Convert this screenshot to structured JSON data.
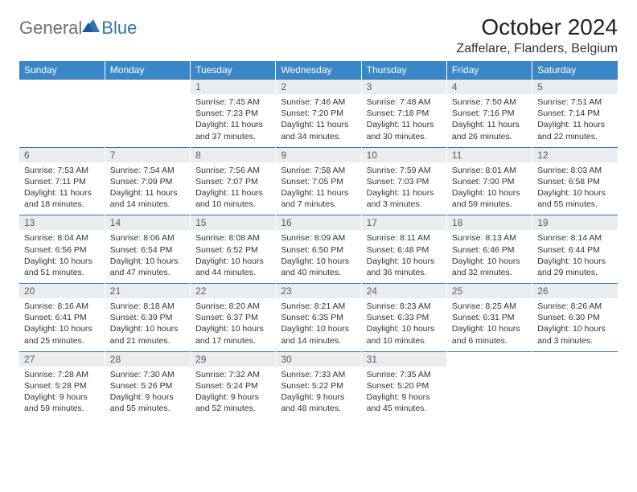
{
  "logo": {
    "text1": "General",
    "text2": "Blue",
    "color_gray": "#6f6f6f",
    "color_blue": "#2f74b5"
  },
  "title": "October 2024",
  "location": "Zaffelare, Flanders, Belgium",
  "header_bg": "#3a87c8",
  "daynum_bg": "#e9edf0",
  "border_color": "#2f74b5",
  "days": [
    "Sunday",
    "Monday",
    "Tuesday",
    "Wednesday",
    "Thursday",
    "Friday",
    "Saturday"
  ],
  "weeks": [
    {
      "nums": [
        "",
        "",
        "1",
        "2",
        "3",
        "4",
        "5"
      ],
      "cells": [
        null,
        null,
        {
          "sunrise": "Sunrise: 7:45 AM",
          "sunset": "Sunset: 7:23 PM",
          "daylight": "Daylight: 11 hours and 37 minutes."
        },
        {
          "sunrise": "Sunrise: 7:46 AM",
          "sunset": "Sunset: 7:20 PM",
          "daylight": "Daylight: 11 hours and 34 minutes."
        },
        {
          "sunrise": "Sunrise: 7:48 AM",
          "sunset": "Sunset: 7:18 PM",
          "daylight": "Daylight: 11 hours and 30 minutes."
        },
        {
          "sunrise": "Sunrise: 7:50 AM",
          "sunset": "Sunset: 7:16 PM",
          "daylight": "Daylight: 11 hours and 26 minutes."
        },
        {
          "sunrise": "Sunrise: 7:51 AM",
          "sunset": "Sunset: 7:14 PM",
          "daylight": "Daylight: 11 hours and 22 minutes."
        }
      ]
    },
    {
      "nums": [
        "6",
        "7",
        "8",
        "9",
        "10",
        "11",
        "12"
      ],
      "cells": [
        {
          "sunrise": "Sunrise: 7:53 AM",
          "sunset": "Sunset: 7:11 PM",
          "daylight": "Daylight: 11 hours and 18 minutes."
        },
        {
          "sunrise": "Sunrise: 7:54 AM",
          "sunset": "Sunset: 7:09 PM",
          "daylight": "Daylight: 11 hours and 14 minutes."
        },
        {
          "sunrise": "Sunrise: 7:56 AM",
          "sunset": "Sunset: 7:07 PM",
          "daylight": "Daylight: 11 hours and 10 minutes."
        },
        {
          "sunrise": "Sunrise: 7:58 AM",
          "sunset": "Sunset: 7:05 PM",
          "daylight": "Daylight: 11 hours and 7 minutes."
        },
        {
          "sunrise": "Sunrise: 7:59 AM",
          "sunset": "Sunset: 7:03 PM",
          "daylight": "Daylight: 11 hours and 3 minutes."
        },
        {
          "sunrise": "Sunrise: 8:01 AM",
          "sunset": "Sunset: 7:00 PM",
          "daylight": "Daylight: 10 hours and 59 minutes."
        },
        {
          "sunrise": "Sunrise: 8:03 AM",
          "sunset": "Sunset: 6:58 PM",
          "daylight": "Daylight: 10 hours and 55 minutes."
        }
      ]
    },
    {
      "nums": [
        "13",
        "14",
        "15",
        "16",
        "17",
        "18",
        "19"
      ],
      "cells": [
        {
          "sunrise": "Sunrise: 8:04 AM",
          "sunset": "Sunset: 6:56 PM",
          "daylight": "Daylight: 10 hours and 51 minutes."
        },
        {
          "sunrise": "Sunrise: 8:06 AM",
          "sunset": "Sunset: 6:54 PM",
          "daylight": "Daylight: 10 hours and 47 minutes."
        },
        {
          "sunrise": "Sunrise: 8:08 AM",
          "sunset": "Sunset: 6:52 PM",
          "daylight": "Daylight: 10 hours and 44 minutes."
        },
        {
          "sunrise": "Sunrise: 8:09 AM",
          "sunset": "Sunset: 6:50 PM",
          "daylight": "Daylight: 10 hours and 40 minutes."
        },
        {
          "sunrise": "Sunrise: 8:11 AM",
          "sunset": "Sunset: 6:48 PM",
          "daylight": "Daylight: 10 hours and 36 minutes."
        },
        {
          "sunrise": "Sunrise: 8:13 AM",
          "sunset": "Sunset: 6:46 PM",
          "daylight": "Daylight: 10 hours and 32 minutes."
        },
        {
          "sunrise": "Sunrise: 8:14 AM",
          "sunset": "Sunset: 6:44 PM",
          "daylight": "Daylight: 10 hours and 29 minutes."
        }
      ]
    },
    {
      "nums": [
        "20",
        "21",
        "22",
        "23",
        "24",
        "25",
        "26"
      ],
      "cells": [
        {
          "sunrise": "Sunrise: 8:16 AM",
          "sunset": "Sunset: 6:41 PM",
          "daylight": "Daylight: 10 hours and 25 minutes."
        },
        {
          "sunrise": "Sunrise: 8:18 AM",
          "sunset": "Sunset: 6:39 PM",
          "daylight": "Daylight: 10 hours and 21 minutes."
        },
        {
          "sunrise": "Sunrise: 8:20 AM",
          "sunset": "Sunset: 6:37 PM",
          "daylight": "Daylight: 10 hours and 17 minutes."
        },
        {
          "sunrise": "Sunrise: 8:21 AM",
          "sunset": "Sunset: 6:35 PM",
          "daylight": "Daylight: 10 hours and 14 minutes."
        },
        {
          "sunrise": "Sunrise: 8:23 AM",
          "sunset": "Sunset: 6:33 PM",
          "daylight": "Daylight: 10 hours and 10 minutes."
        },
        {
          "sunrise": "Sunrise: 8:25 AM",
          "sunset": "Sunset: 6:31 PM",
          "daylight": "Daylight: 10 hours and 6 minutes."
        },
        {
          "sunrise": "Sunrise: 8:26 AM",
          "sunset": "Sunset: 6:30 PM",
          "daylight": "Daylight: 10 hours and 3 minutes."
        }
      ]
    },
    {
      "nums": [
        "27",
        "28",
        "29",
        "30",
        "31",
        "",
        ""
      ],
      "cells": [
        {
          "sunrise": "Sunrise: 7:28 AM",
          "sunset": "Sunset: 5:28 PM",
          "daylight": "Daylight: 9 hours and 59 minutes."
        },
        {
          "sunrise": "Sunrise: 7:30 AM",
          "sunset": "Sunset: 5:26 PM",
          "daylight": "Daylight: 9 hours and 55 minutes."
        },
        {
          "sunrise": "Sunrise: 7:32 AM",
          "sunset": "Sunset: 5:24 PM",
          "daylight": "Daylight: 9 hours and 52 minutes."
        },
        {
          "sunrise": "Sunrise: 7:33 AM",
          "sunset": "Sunset: 5:22 PM",
          "daylight": "Daylight: 9 hours and 48 minutes."
        },
        {
          "sunrise": "Sunrise: 7:35 AM",
          "sunset": "Sunset: 5:20 PM",
          "daylight": "Daylight: 9 hours and 45 minutes."
        },
        null,
        null
      ]
    }
  ]
}
